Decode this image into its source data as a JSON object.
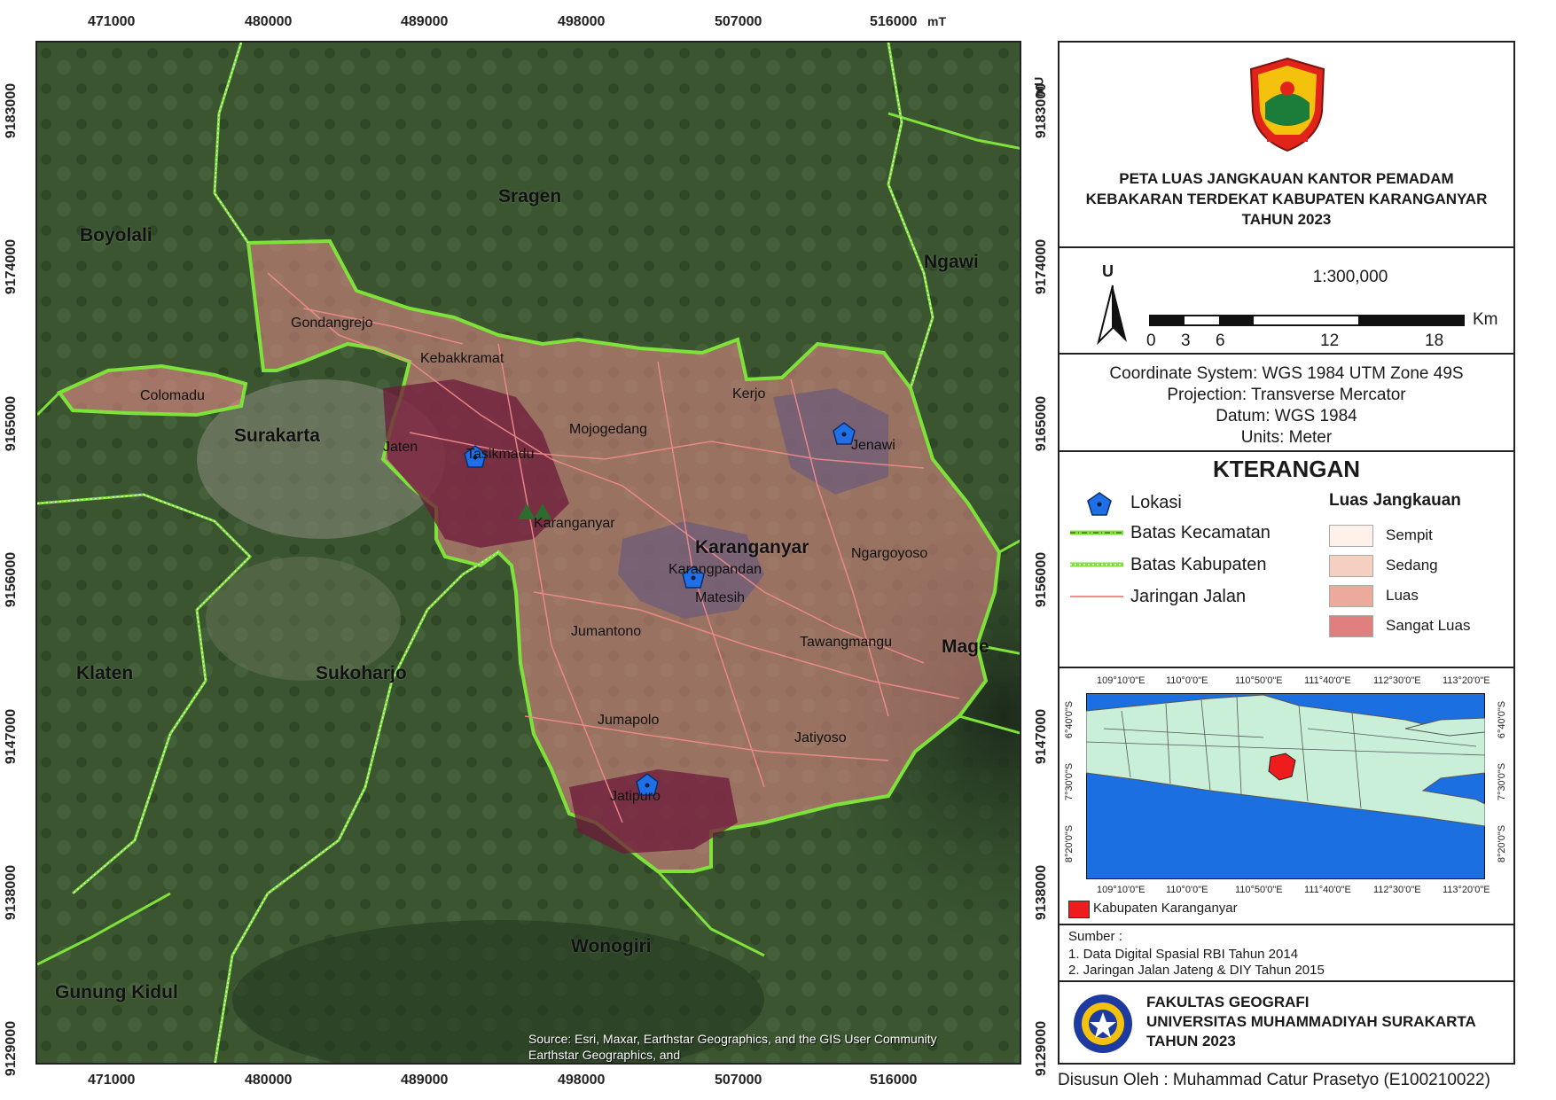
{
  "map": {
    "x_ticks": [
      "471000",
      "480000",
      "489000",
      "498000",
      "507000",
      "516000"
    ],
    "x_unit": "mT",
    "y_ticks": [
      "9183000",
      "9174000",
      "9165000",
      "9156000",
      "9147000",
      "9138000",
      "9129000"
    ],
    "y_unit": "mU",
    "regions": [
      {
        "name": "Boyolali"
      },
      {
        "name": "Sragen"
      },
      {
        "name": "Ngawi"
      },
      {
        "name": "Surakarta"
      },
      {
        "name": "Karanganyar"
      },
      {
        "name": "Klaten"
      },
      {
        "name": "Sukoharjo"
      },
      {
        "name": "Wonogiri"
      },
      {
        "name": "Gunung Kidul"
      },
      {
        "name": "Mage"
      }
    ],
    "kecamatan": [
      {
        "name": "Gondangrejo"
      },
      {
        "name": "Kebakkramat"
      },
      {
        "name": "Colomadu"
      },
      {
        "name": "Jaten"
      },
      {
        "name": "Tasikmadu"
      },
      {
        "name": "Mojogedang"
      },
      {
        "name": "Kerjo"
      },
      {
        "name": "Jenawi"
      },
      {
        "name": "Karanganyar"
      },
      {
        "name": "Karangpandan"
      },
      {
        "name": "Ngargoyoso"
      },
      {
        "name": "Matesih"
      },
      {
        "name": "Jumantono"
      },
      {
        "name": "Tawangmangu"
      },
      {
        "name": "Jumapolo"
      },
      {
        "name": "Jatiyoso"
      },
      {
        "name": "Jatipuro"
      }
    ],
    "source_line1": "Source: Esri, Maxar, Earthstar Geographics, and the GIS User Community",
    "source_line2": "Earthstar Geographics, and"
  },
  "panel": {
    "title_lines": [
      "PETA LUAS JANGKAUAN KANTOR PEMADAM",
      "KEBAKARAN TERDEKAT KABUPATEN KARANGANYAR",
      "TAHUN 2023"
    ],
    "north_label": "U",
    "scale_text": "1:300,000",
    "scale_ticks": [
      "0",
      "3",
      "6",
      "12",
      "18"
    ],
    "scale_unit": "Km",
    "coord_lines": [
      "Coordinate System: WGS 1984 UTM Zone 49S",
      "Projection: Transverse Mercator",
      "Datum: WGS 1984",
      "Units: Meter"
    ],
    "legend_title": "KTERANGAN",
    "legend_items": [
      "Lokasi",
      "Batas Kecamatan",
      "Batas Kabupaten",
      "Jaringan Jalan"
    ],
    "luas_title": "Luas Jangkauan",
    "luas_items": [
      {
        "label": "Sempit",
        "color": "#fdf1ea"
      },
      {
        "label": "Sedang",
        "color": "#f5cfc0"
      },
      {
        "label": "Luas",
        "color": "#ecaa9c"
      },
      {
        "label": "Sangat Luas",
        "color": "#e07f7f"
      }
    ],
    "inset_lon_ticks": [
      "109°10'0\"E",
      "110°0'0\"E",
      "110°50'0\"E",
      "111°40'0\"E",
      "112°30'0\"E",
      "113°20'0\"E"
    ],
    "inset_lat_ticks": [
      "6°40'0\"S",
      "7°30'0\"S",
      "8°20'0\"S"
    ],
    "inset_legend": "Kabupaten Karanganyar",
    "sumber_title": "Sumber :",
    "sumber_lines": [
      "1. Data Digital Spasial RBI Tahun 2014",
      "2. Jaringan Jalan Jateng & DIY Tahun 2015"
    ],
    "institution_lines": [
      "FAKULTAS GEOGRAFI",
      "UNIVERSITAS MUHAMMADIYAH SURAKARTA",
      "TAHUN 2023"
    ]
  },
  "footer": "Disusun Oleh : Muhammad Catur Prasetyo (E100210022)",
  "colors": {
    "boundary_green": "#7fe23a",
    "road_pink": "#f28c8c",
    "marker_blue": "#1e6fe8",
    "sea_blue": "#1b6fe0",
    "land_mint": "#c9efd9",
    "highlight_red": "#ee1c1c"
  }
}
